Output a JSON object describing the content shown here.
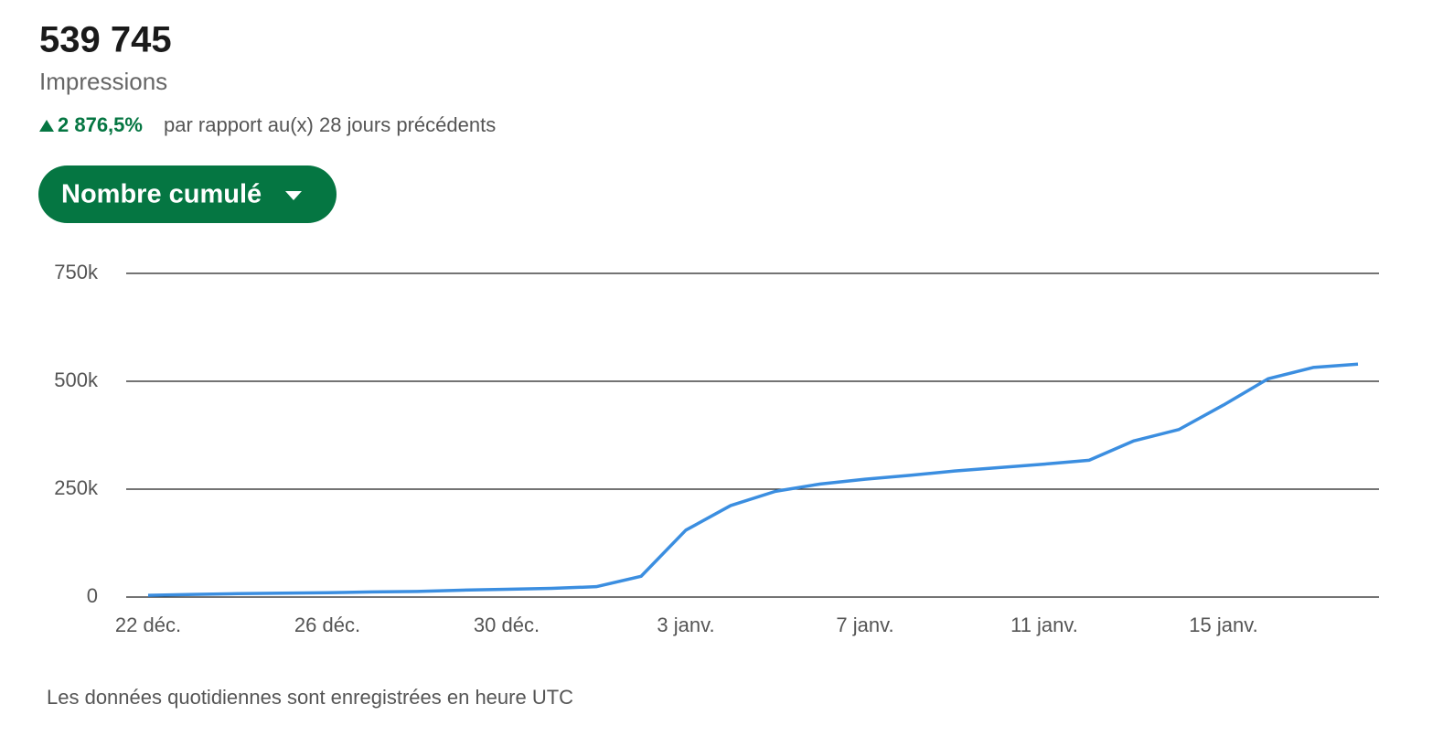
{
  "header": {
    "total": "539 745",
    "label": "Impressions",
    "change": "2 876,5%",
    "change_text": "par rapport au(x) 28 jours précédents",
    "button": "Nombre cumulé"
  },
  "chart_data": {
    "type": "line",
    "color": "#3b8ee0",
    "grid": true,
    "categories": [
      "22 déc.",
      null,
      null,
      null,
      "26 déc.",
      null,
      null,
      null,
      "30 déc.",
      null,
      null,
      null,
      "3 janv.",
      null,
      null,
      null,
      "7 janv.",
      null,
      null,
      null,
      "11 janv.",
      null,
      null,
      null,
      "15 janv.",
      null,
      null,
      null
    ],
    "values": [
      4000,
      6000,
      8000,
      9000,
      10000,
      12000,
      13000,
      16000,
      18000,
      20000,
      24000,
      48000,
      155000,
      212000,
      245000,
      262000,
      273000,
      282000,
      292000,
      300000,
      308000,
      317000,
      362000,
      388000,
      445000,
      506000,
      532000,
      539745
    ],
    "ylim": [
      0,
      750000
    ],
    "yticks": [
      0,
      {
        "value": 250000,
        "label": "250k"
      },
      {
        "value": 500000,
        "label": "500k"
      },
      {
        "value": 750000,
        "label": "750k"
      }
    ]
  },
  "footer": "Les données quotidiennes sont enregistrées en heure UTC"
}
